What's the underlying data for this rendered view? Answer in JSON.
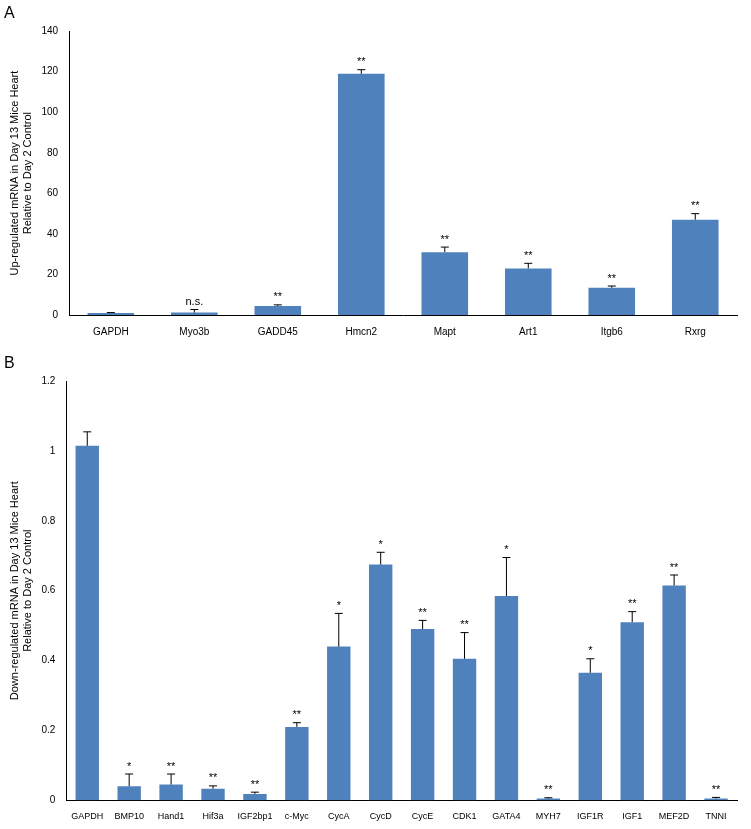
{
  "chart_data": [
    {
      "type": "bar",
      "title": "A",
      "y_label": [
        "Up-regulated mRNA in Day 13 Mice Heart",
        "Relative to Day 2 Control"
      ],
      "categories": [
        "GAPDH",
        "Myo3b",
        "GADD45",
        "Hmcn2",
        "Mapt",
        "Art1",
        "Itgb6",
        "Rxrg"
      ],
      "values": [
        1,
        1.2,
        4.5,
        119,
        31,
        23,
        13.5,
        47
      ],
      "errors": [
        0.2,
        1.5,
        0.5,
        2,
        2.5,
        2.5,
        0.8,
        3
      ],
      "annotations": [
        null,
        "n.s.",
        "**",
        "**",
        "**",
        "**",
        "**",
        "**"
      ],
      "color": "#4f81bd",
      "ylim": [
        0,
        140
      ],
      "yticks": [
        0,
        20,
        40,
        60,
        80,
        100,
        120,
        140
      ],
      "grid": false
    },
    {
      "type": "bar",
      "title": "B",
      "y_label": [
        "Down-regulated mRNA in Day 13 Mice Heart",
        "Relative to Day 2 Control"
      ],
      "categories": [
        "GAPDH",
        "BMP10",
        "Hand1",
        "Hif3a",
        "IGF2bp1",
        "c-Myc",
        "CycA",
        "CycD",
        "CycE",
        "CDK1",
        "GATA4",
        "MYH7",
        "IGF1R",
        "IGF1",
        "MEF2D",
        "TNNI"
      ],
      "values": [
        1.015,
        0.04,
        0.045,
        0.033,
        0.018,
        0.21,
        0.44,
        0.675,
        0.49,
        0.405,
        0.585,
        0.005,
        0.365,
        0.51,
        0.615,
        0.005
      ],
      "errors": [
        0.04,
        0.035,
        0.03,
        0.008,
        0.005,
        0.012,
        0.095,
        0.035,
        0.025,
        0.075,
        0.11,
        0.002,
        0.04,
        0.03,
        0.03,
        0.003
      ],
      "annotations": [
        null,
        "*",
        "**",
        "**",
        "**",
        "**",
        "*",
        "*",
        "**",
        "**",
        "*",
        "**",
        "*",
        "**",
        "**",
        "**"
      ],
      "color": "#4f81bd",
      "ylim": [
        0,
        1.2
      ],
      "yticks": [
        0,
        0.2,
        0.4,
        0.6,
        0.8,
        1,
        1.2
      ],
      "grid": false
    }
  ]
}
